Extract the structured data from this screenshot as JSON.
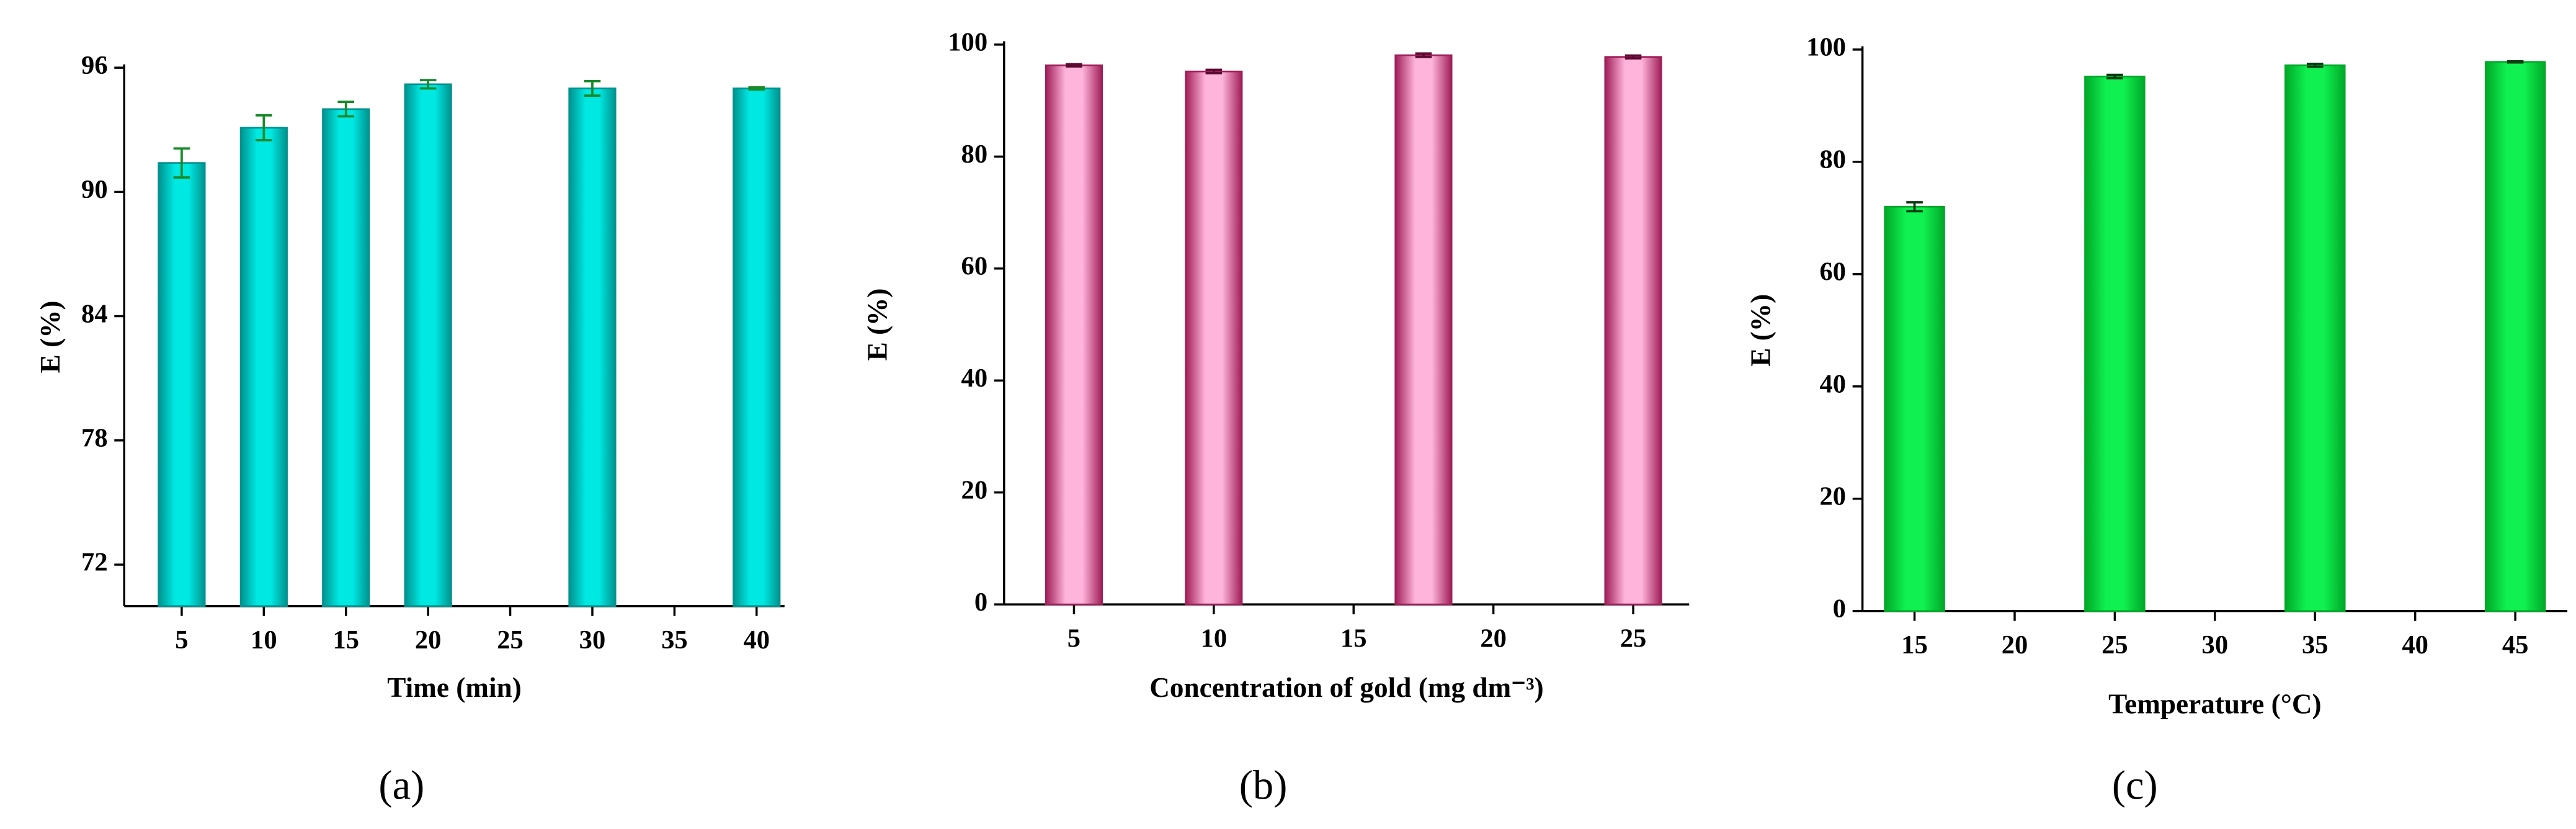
{
  "chart_data": [
    {
      "type": "bar",
      "panel_label": "(a)",
      "xlabel": "Time (min)",
      "ylabel": "E (%)",
      "x": [
        5,
        10,
        15,
        20,
        30,
        40
      ],
      "values": [
        91.4,
        93.1,
        94.0,
        95.2,
        95.0,
        95.0
      ],
      "errors": [
        0.7,
        0.6,
        0.35,
        0.2,
        0.35,
        0.05
      ],
      "color": "#00e8e2",
      "edge_color": "#00928e",
      "error_color": "#1a8a2a",
      "xlim": [
        1.5,
        41.7
      ],
      "xticks": [
        5,
        10,
        15,
        20,
        25,
        30,
        35,
        40
      ],
      "ylim": [
        70,
        96
      ],
      "yticks": [
        72,
        78,
        84,
        90,
        96
      ]
    },
    {
      "type": "bar",
      "panel_label": "(b)",
      "xlabel": "Concentration of gold (mg dm⁻³)",
      "ylabel": "E (%)",
      "x": [
        5,
        10,
        17.5,
        25
      ],
      "values": [
        96.3,
        95.2,
        98.1,
        97.8
      ],
      "errors": [
        0.2,
        0.3,
        0.3,
        0.25
      ],
      "color": "#ffb4dc",
      "edge_color": "#a01e58",
      "error_color": "#5a0a30",
      "xlim": [
        2.5,
        27
      ],
      "xticks": [
        5,
        10,
        15,
        20,
        25
      ],
      "ylim": [
        0,
        100
      ],
      "yticks": [
        0,
        20,
        40,
        60,
        80,
        100
      ]
    },
    {
      "type": "bar",
      "panel_label": "(c)",
      "xlabel": "Temperature (°C)",
      "ylabel": "E (%)",
      "x": [
        15,
        25,
        35,
        45
      ],
      "values": [
        72.0,
        95.2,
        97.2,
        97.8
      ],
      "errors": [
        0.8,
        0.3,
        0.25,
        0.1
      ],
      "color": "#10f050",
      "edge_color": "#00a828",
      "error_color": "#0a3a10",
      "xlim": [
        12.4,
        47.6
      ],
      "xticks": [
        15,
        20,
        25,
        30,
        35,
        40,
        45
      ],
      "ylim": [
        0,
        100
      ],
      "yticks": [
        0,
        20,
        40,
        60,
        80,
        100
      ]
    }
  ]
}
